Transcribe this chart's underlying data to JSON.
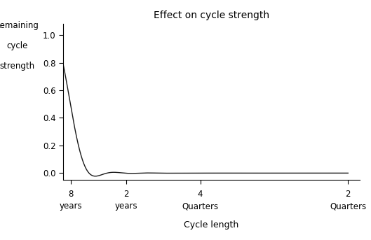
{
  "title": "Effect on cycle strength",
  "ylabel_line1": "Remaining",
  "ylabel_line2": "cycle",
  "ylabel_line3": "strength",
  "xlabel": "Cycle length",
  "yticks": [
    0.0,
    0.2,
    0.4,
    0.6,
    0.8,
    1.0
  ],
  "xtick_freqs": [
    0.03125,
    0.125,
    0.25,
    0.5
  ],
  "xtick_labels_top": [
    "8",
    "2",
    "4",
    "2"
  ],
  "xtick_labels_bottom": [
    "years",
    "years",
    "Quarters",
    "Quarters"
  ],
  "xlim_freq": [
    0.018,
    0.52
  ],
  "ylim": [
    -0.05,
    1.08
  ],
  "line_color": "#1a1a1a",
  "background_color": "#ffffff",
  "n_terms": 33
}
